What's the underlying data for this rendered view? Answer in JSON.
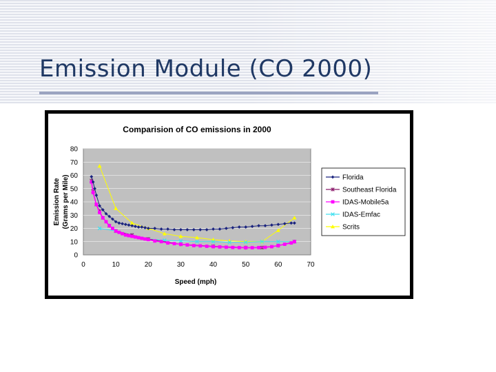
{
  "slide": {
    "title": "Emission Module (CO 2000)"
  },
  "chart_data": {
    "type": "line",
    "title": "Comparision of CO emissions in 2000",
    "xlabel": "Speed (mph)",
    "ylabel": "Emission Rate (Grams per Mile)",
    "xlim": [
      0,
      70
    ],
    "ylim": [
      0,
      80
    ],
    "x_ticks": [
      0,
      10,
      20,
      30,
      40,
      50,
      60,
      70
    ],
    "y_ticks": [
      0,
      10,
      20,
      30,
      40,
      50,
      60,
      70,
      80
    ],
    "grid": true,
    "legend_position": "right",
    "plot_background": "#c0c0c0",
    "series": [
      {
        "name": "Florida",
        "color": "#1a237e",
        "marker": "diamond",
        "x": [
          2.5,
          3,
          3.5,
          4,
          5,
          6,
          7,
          8,
          9,
          10,
          11,
          12,
          13,
          14,
          15,
          16,
          17,
          18,
          19,
          20,
          22,
          24,
          26,
          28,
          30,
          32,
          34,
          36,
          38,
          40,
          42,
          44,
          46,
          48,
          50,
          52,
          54,
          56,
          58,
          60,
          62,
          64,
          65
        ],
        "y": [
          59,
          55,
          50,
          45,
          37,
          34,
          31,
          29,
          27,
          25,
          24,
          23.5,
          23,
          22.5,
          22,
          21.5,
          21,
          21,
          20.5,
          20,
          20,
          19.5,
          19.5,
          19,
          19,
          19,
          19,
          19,
          19,
          19.5,
          19.5,
          20,
          20.5,
          21,
          21,
          21.5,
          22,
          22,
          22.5,
          23,
          23.5,
          24,
          24
        ]
      },
      {
        "name": "Southeast Florida",
        "color": "#8b1a6b",
        "marker": "star",
        "x": [
          2.5,
          3,
          4,
          5,
          6,
          8,
          10,
          15,
          20,
          30,
          40,
          50,
          55,
          60,
          65
        ],
        "y": [
          56,
          48,
          38,
          33,
          28,
          22,
          18,
          15,
          12,
          8,
          6.5,
          5.5,
          5.5,
          7,
          10
        ]
      },
      {
        "name": "IDAS-Mobile5a",
        "color": "#ff00ff",
        "marker": "square",
        "x": [
          2.5,
          3,
          4,
          5,
          6,
          7,
          8,
          9,
          10,
          11,
          12,
          13,
          14,
          15,
          16,
          17,
          18,
          19,
          20,
          22,
          24,
          26,
          28,
          30,
          32,
          34,
          36,
          38,
          40,
          42,
          44,
          46,
          48,
          50,
          52,
          54,
          56,
          58,
          60,
          62,
          64,
          65
        ],
        "y": [
          55,
          47,
          38,
          32,
          28,
          25,
          22,
          20,
          18,
          17,
          16,
          15,
          14.5,
          14,
          13.5,
          13,
          12.5,
          12,
          11.5,
          10.5,
          10,
          9,
          8.5,
          8,
          7.5,
          7,
          6.8,
          6.5,
          6.2,
          6,
          5.8,
          5.6,
          5.5,
          5.4,
          5.4,
          5.5,
          5.7,
          6.2,
          7,
          8,
          9,
          10
        ]
      },
      {
        "name": "IDAS-Emfac",
        "color": "#40e0f0",
        "marker": "x",
        "x": [
          5,
          10,
          15,
          20,
          25,
          30,
          35,
          40,
          45,
          50,
          55,
          60,
          65
        ],
        "y": [
          20,
          18,
          15,
          12,
          11,
          10.5,
          10,
          10,
          9.5,
          9.5,
          10,
          10,
          10
        ]
      },
      {
        "name": "Scrits",
        "color": "#ffff00",
        "marker": "triangle",
        "x": [
          5,
          10,
          15,
          20,
          25,
          30,
          35,
          40,
          45,
          50,
          55,
          60,
          65
        ],
        "y": [
          67,
          35,
          24,
          20,
          16,
          14,
          13,
          11.5,
          10.5,
          10,
          10,
          18.5,
          28
        ]
      }
    ]
  }
}
